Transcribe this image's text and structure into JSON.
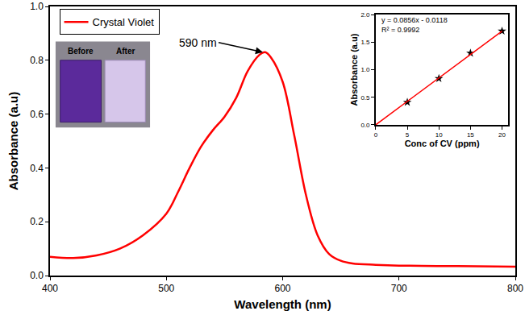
{
  "chart_data": [
    {
      "type": "line",
      "x_label": "Wavelength (nm)",
      "y_label": "Absorbance (a.u)",
      "x": [
        400,
        420,
        440,
        460,
        480,
        500,
        510,
        520,
        530,
        540,
        550,
        560,
        570,
        580,
        585,
        590,
        600,
        610,
        620,
        630,
        640,
        650,
        660,
        680,
        700,
        750,
        800
      ],
      "series": [
        {
          "name": "Crystal Violet",
          "color": "#ff0000",
          "values": [
            0.07,
            0.065,
            0.075,
            0.1,
            0.15,
            0.23,
            0.31,
            0.4,
            0.48,
            0.54,
            0.59,
            0.66,
            0.76,
            0.82,
            0.83,
            0.81,
            0.72,
            0.52,
            0.3,
            0.15,
            0.08,
            0.055,
            0.045,
            0.04,
            0.037,
            0.035,
            0.033
          ]
        }
      ],
      "xlim": [
        400,
        800
      ],
      "xticks": [
        400,
        500,
        600,
        700,
        800
      ],
      "ylim": [
        0,
        1.0
      ],
      "yticks": [
        {
          "value": 0,
          "label": "0.0"
        },
        0.2,
        0.4,
        0.6,
        0.8,
        {
          "value": 1,
          "label": "1.0"
        }
      ],
      "grid": false,
      "legend": "upper left",
      "annotations": [
        {
          "text": "590 nm",
          "x": 583,
          "y": 0.83
        }
      ],
      "photo_labels": [
        "Before",
        "After"
      ]
    },
    {
      "type": "scatter",
      "x_label": "Conc of CV (ppm)",
      "y_label": "Absorbance (a.u)",
      "series": [
        {
          "type": "scatter",
          "marker": "star",
          "color": "#000000",
          "x": [
            5,
            10,
            15,
            20
          ],
          "values": [
            0.41,
            0.84,
            1.3,
            1.7
          ]
        },
        {
          "type": "line",
          "color": "#ff0000",
          "x": [
            0,
            20
          ],
          "values": [
            0.0,
            1.7
          ]
        }
      ],
      "xlim": [
        0,
        21
      ],
      "xticks": [
        0,
        5,
        10,
        15,
        20
      ],
      "ylim": [
        0,
        2.0
      ],
      "yticks": [
        {
          "value": 0,
          "label": "0.0"
        },
        0.5,
        {
          "value": 1,
          "label": "1.0"
        },
        1.5,
        {
          "value": 2,
          "label": "2.0"
        }
      ],
      "grid": false,
      "annotations": [
        {
          "text": "y = 0.0856x - 0.0118",
          "x": 0.6,
          "y": 1.9
        },
        {
          "text": "R² = 0.9992",
          "x": 0.6,
          "y": 1.72
        }
      ]
    }
  ]
}
